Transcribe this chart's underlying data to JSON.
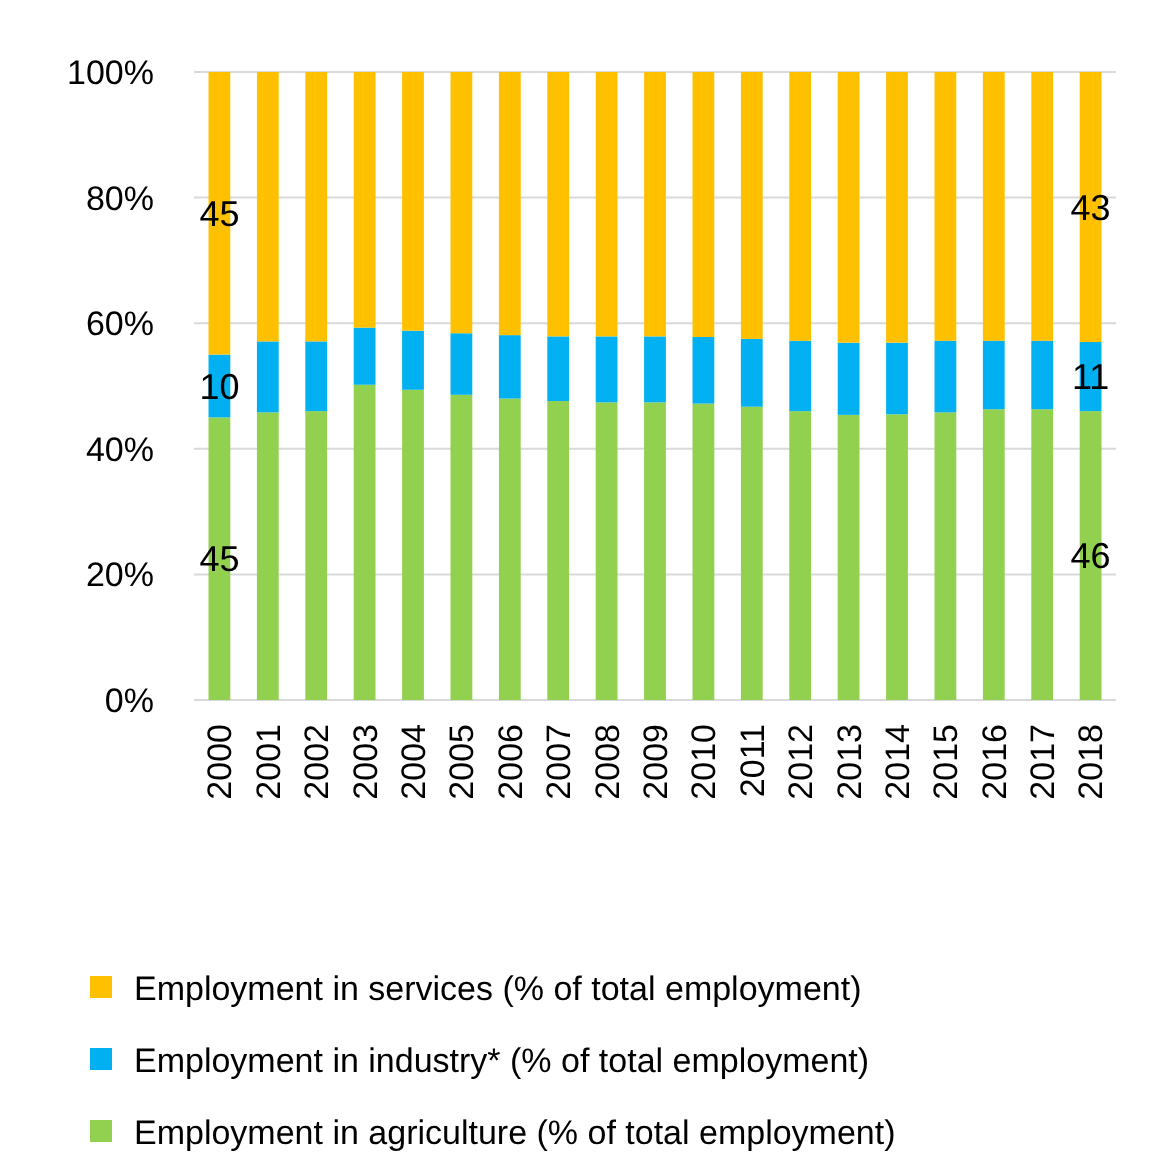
{
  "chart_data": {
    "type": "bar",
    "stacked": true,
    "categories": [
      "2000",
      "2001",
      "2002",
      "2003",
      "2004",
      "2005",
      "2006",
      "2007",
      "2008",
      "2009",
      "2010",
      "2011",
      "2012",
      "2013",
      "2014",
      "2015",
      "2016",
      "2017",
      "2018"
    ],
    "series": [
      {
        "name": "Employment in agriculture (% of total employment)",
        "color": "#92d050",
        "values": [
          45,
          45.8,
          46.0,
          50.2,
          49.4,
          48.6,
          48.0,
          47.6,
          47.4,
          47.4,
          47.2,
          46.7,
          46.0,
          45.4,
          45.5,
          45.8,
          46.3,
          46.3,
          46
        ],
        "value_labels": [
          "45",
          null,
          null,
          null,
          null,
          null,
          null,
          null,
          null,
          null,
          null,
          null,
          null,
          null,
          null,
          null,
          null,
          null,
          "46"
        ]
      },
      {
        "name": "Employment in industry* (% of total employment)",
        "color": "#00b0f0",
        "values": [
          10,
          11.3,
          11.1,
          9.1,
          9.4,
          9.8,
          10.1,
          10.3,
          10.5,
          10.5,
          10.6,
          10.8,
          11.2,
          11.5,
          11.4,
          11.4,
          10.9,
          10.9,
          11
        ],
        "value_labels": [
          "10",
          null,
          null,
          null,
          null,
          null,
          null,
          null,
          null,
          null,
          null,
          null,
          null,
          null,
          null,
          null,
          null,
          null,
          "11"
        ]
      },
      {
        "name": "Employment in services (% of total employment)",
        "color": "#ffc000",
        "values": [
          45,
          42.9,
          42.9,
          40.7,
          41.2,
          41.6,
          41.9,
          42.1,
          42.1,
          42.1,
          42.2,
          42.5,
          42.8,
          43.1,
          43.1,
          42.8,
          42.8,
          42.8,
          43
        ],
        "value_labels": [
          "45",
          null,
          null,
          null,
          null,
          null,
          null,
          null,
          null,
          null,
          null,
          null,
          null,
          null,
          null,
          null,
          null,
          null,
          "43"
        ]
      }
    ],
    "ylim": [
      0,
      100
    ],
    "yticks": [
      {
        "value": 0,
        "label": "0%"
      },
      {
        "value": 20,
        "label": "20%"
      },
      {
        "value": 40,
        "label": "40%"
      },
      {
        "value": 60,
        "label": "60%"
      },
      {
        "value": 80,
        "label": "80%"
      },
      {
        "value": 100,
        "label": "100%"
      }
    ],
    "grid": "y",
    "legend": "bottom"
  }
}
